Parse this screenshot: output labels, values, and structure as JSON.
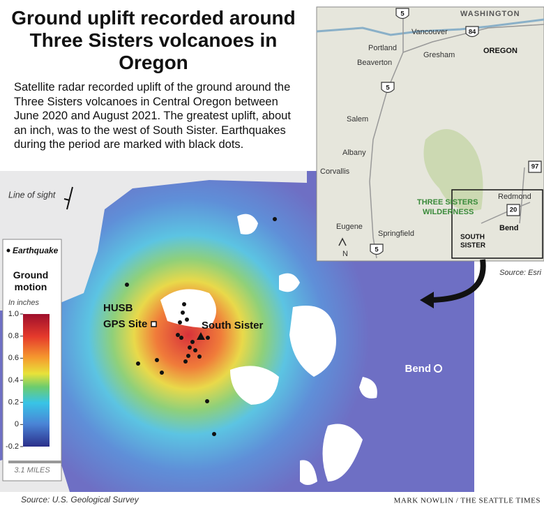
{
  "title": "Ground uplift recorded around Three Sisters volcanoes in Oregon",
  "description": "Satellite radar recorded uplift of the ground around the Three Sisters volcanoes in Central Oregon between June 2020 and August 2021. The greatest uplift, about an inch, was to the west of South Sister. Earthquakes during the period are marked with black dots.",
  "map": {
    "line_of_sight": "Line of sight",
    "station": "HUSB",
    "station_type": "GPS Site",
    "volcano": "South Sister",
    "city": "Bend"
  },
  "legend": {
    "earthquake": "Earthquake",
    "title": "Ground motion",
    "units": "In inches",
    "ticks": [
      {
        "value": 1.0,
        "label": "1.0"
      },
      0.8,
      0.6,
      0.4,
      0.2,
      0,
      -0.2
    ],
    "scale_bar": "3.1 MILES"
  },
  "inset": {
    "washington": "WASHINGTON",
    "oregon": "OREGON",
    "vancouver": "Vancouver",
    "portland": "Portland",
    "gresham": "Gresham",
    "beaverton": "Beaverton",
    "salem": "Salem",
    "albany": "Albany",
    "corvallis": "Corvallis",
    "eugene": "Eugene",
    "springfield": "Springfield",
    "redmond": "Redmond",
    "bend": "Bend",
    "wilderness_1": "THREE SISTERS",
    "wilderness_2": "WILDERNESS",
    "south_sister_1": "SOUTH",
    "south_sister_2": "SISTER",
    "north": "N",
    "highways": [
      "5",
      "84",
      "5",
      "97",
      "20",
      "5"
    ],
    "source": "Source: Esri"
  },
  "footer": {
    "source": "Source: U.S. Geological Survey",
    "credit": "MARK NOWLIN / THE SEATTLE TIMES"
  }
}
